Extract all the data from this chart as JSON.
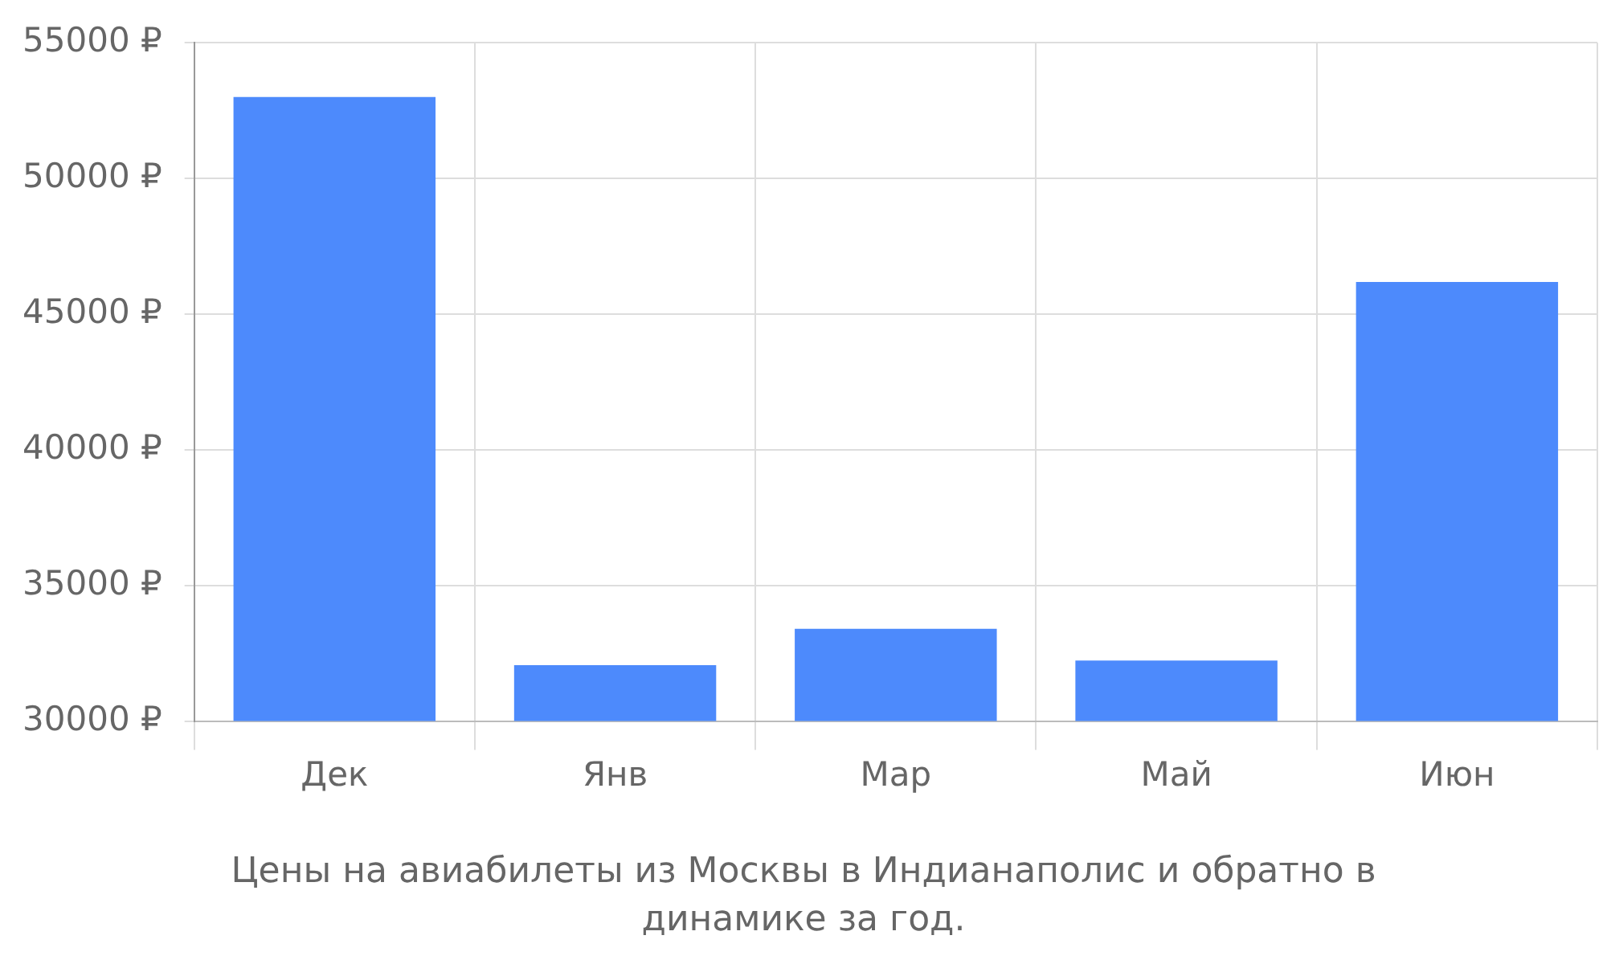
{
  "chart_data": {
    "type": "bar",
    "categories": [
      "Дек",
      "Янв",
      "Мар",
      "Май",
      "Июн"
    ],
    "values": [
      53000,
      32060,
      33400,
      32230,
      46180
    ],
    "color": "#4d8afc",
    "ylim": [
      30000,
      55000
    ],
    "yticks": [
      {
        "value": 30000,
        "label": "30000 ₽"
      },
      {
        "value": 35000,
        "label": "35000 ₽"
      },
      {
        "value": 40000,
        "label": "40000 ₽"
      },
      {
        "value": 45000,
        "label": "45000 ₽"
      },
      {
        "value": 50000,
        "label": "50000 ₽"
      },
      {
        "value": 55000,
        "label": "55000 ₽"
      }
    ],
    "grid": true,
    "legend": false,
    "annotations": [
      "Цены на авиабилеты из Москвы в Индианаполис и обратно в динамике за год."
    ]
  }
}
